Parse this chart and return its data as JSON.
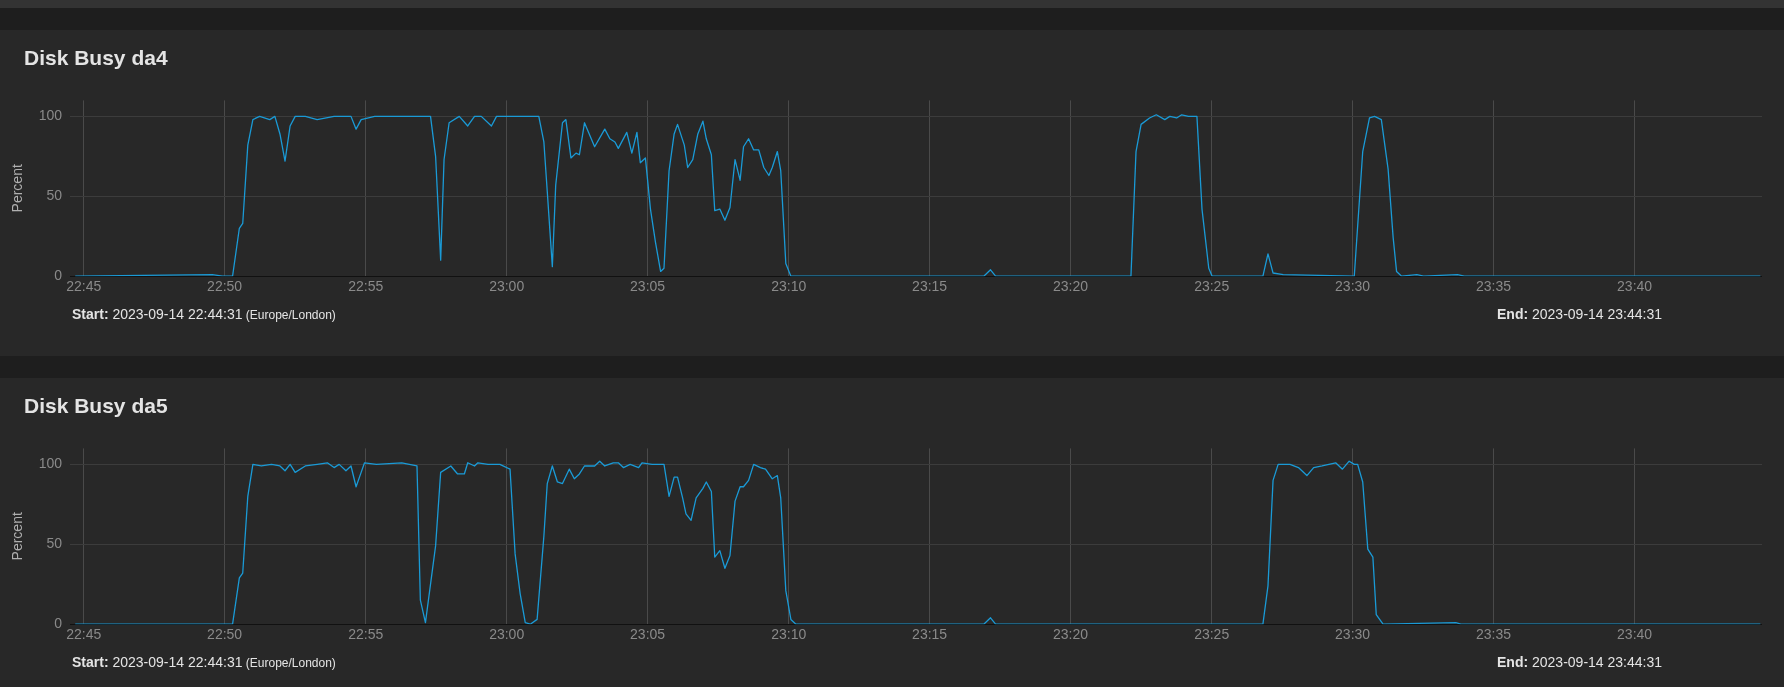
{
  "chart_data": [
    {
      "type": "line",
      "title": "Disk Busy da4",
      "ylabel": "Percent",
      "color": "#1a9ad6",
      "grid": true,
      "legend": false,
      "xlim": [
        22.742,
        23.742
      ],
      "ylim": [
        0,
        110
      ],
      "yticks": [
        0,
        50,
        100
      ],
      "xticks": [
        {
          "value": 22.75,
          "label": "22:45"
        },
        {
          "value": 22.8333,
          "label": "22:50"
        },
        {
          "value": 22.9167,
          "label": "22:55"
        },
        {
          "value": 23,
          "label": "23:00"
        },
        {
          "value": 23.0833,
          "label": "23:05"
        },
        {
          "value": 23.1667,
          "label": "23:10"
        },
        {
          "value": 23.25,
          "label": "23:15"
        },
        {
          "value": 23.3333,
          "label": "23:20"
        },
        {
          "value": 23.4167,
          "label": "23:25"
        },
        {
          "value": 23.5,
          "label": "23:30"
        },
        {
          "value": 23.5833,
          "label": "23:35"
        },
        {
          "value": 23.6667,
          "label": "23:40"
        }
      ],
      "annotations": [
        "Start: 2023-09-14 22:44:31 (Europe/London)",
        "End: 2023-09-14 23:44:31"
      ],
      "x": [
        22.745,
        22.826,
        22.832,
        22.838,
        22.842,
        22.844,
        22.847,
        22.85,
        22.854,
        22.86,
        22.863,
        22.866,
        22.869,
        22.872,
        22.875,
        22.881,
        22.888,
        22.898,
        22.908,
        22.911,
        22.914,
        22.922,
        22.955,
        22.958,
        22.961,
        22.963,
        22.966,
        22.972,
        22.977,
        22.981,
        22.985,
        22.991,
        22.994,
        23.003,
        23.015,
        23.019,
        23.022,
        23.024,
        23.027,
        23.029,
        23.033,
        23.035,
        23.038,
        23.041,
        23.043,
        23.046,
        23.052,
        23.058,
        23.061,
        23.064,
        23.066,
        23.071,
        23.074,
        23.077,
        23.079,
        23.082,
        23.085,
        23.088,
        23.091,
        23.093,
        23.096,
        23.099,
        23.101,
        23.105,
        23.107,
        23.11,
        23.113,
        23.116,
        23.118,
        23.121,
        23.123,
        23.126,
        23.129,
        23.132,
        23.135,
        23.138,
        23.14,
        23.143,
        23.146,
        23.149,
        23.152,
        23.155,
        23.157,
        23.16,
        23.162,
        23.165,
        23.168,
        23.282,
        23.286,
        23.289,
        23.369,
        23.372,
        23.375,
        23.38,
        23.384,
        23.389,
        23.392,
        23.396,
        23.399,
        23.403,
        23.408,
        23.411,
        23.415,
        23.417,
        23.447,
        23.45,
        23.453,
        23.459,
        23.501,
        23.506,
        23.51,
        23.513,
        23.517,
        23.521,
        23.524,
        23.526,
        23.529,
        23.538,
        23.542,
        23.562,
        23.566,
        23.741
      ],
      "values": [
        0,
        1,
        0,
        0,
        30,
        33,
        82,
        98,
        100,
        98,
        100,
        89,
        72,
        94,
        100,
        100,
        98,
        100,
        100,
        92,
        98,
        100,
        100,
        75,
        10,
        73,
        96,
        100,
        94,
        100,
        100,
        94,
        100,
        100,
        100,
        100,
        84,
        53,
        6,
        57,
        96,
        98,
        74,
        77,
        76,
        96,
        81,
        92,
        86,
        84,
        80,
        90,
        77,
        90,
        71,
        74,
        42,
        21,
        3,
        5,
        66,
        89,
        95,
        82,
        68,
        73,
        89,
        97,
        86,
        76,
        41,
        42,
        35,
        43,
        73,
        60,
        81,
        86,
        79,
        79,
        68,
        63,
        68,
        78,
        66,
        8,
        0,
        0,
        4,
        0,
        0,
        78,
        95,
        99,
        101,
        98,
        100,
        99,
        101,
        100,
        100,
        42,
        5,
        0,
        0,
        14,
        2,
        1,
        0,
        78,
        99,
        100,
        98,
        67,
        24,
        3,
        0,
        1,
        0,
        1,
        0,
        0
      ]
    },
    {
      "type": "line",
      "title": "Disk Busy da5",
      "ylabel": "Percent",
      "color": "#1a9ad6",
      "grid": true,
      "legend": false,
      "xlim": [
        22.742,
        23.742
      ],
      "ylim": [
        0,
        110
      ],
      "yticks": [
        0,
        50,
        100
      ],
      "xticks": [
        {
          "value": 22.75,
          "label": "22:45"
        },
        {
          "value": 22.8333,
          "label": "22:50"
        },
        {
          "value": 22.9167,
          "label": "22:55"
        },
        {
          "value": 23,
          "label": "23:00"
        },
        {
          "value": 23.0833,
          "label": "23:05"
        },
        {
          "value": 23.1667,
          "label": "23:10"
        },
        {
          "value": 23.25,
          "label": "23:15"
        },
        {
          "value": 23.3333,
          "label": "23:20"
        },
        {
          "value": 23.4167,
          "label": "23:25"
        },
        {
          "value": 23.5,
          "label": "23:30"
        },
        {
          "value": 23.5833,
          "label": "23:35"
        },
        {
          "value": 23.6667,
          "label": "23:40"
        }
      ],
      "annotations": [
        "Start: 2023-09-14 22:44:31 (Europe/London)",
        "End: 2023-09-14 23:44:31"
      ],
      "x": [
        22.745,
        22.832,
        22.838,
        22.842,
        22.844,
        22.847,
        22.85,
        22.855,
        22.861,
        22.866,
        22.869,
        22.872,
        22.875,
        22.881,
        22.888,
        22.894,
        22.898,
        22.901,
        22.905,
        22.908,
        22.911,
        22.914,
        22.916,
        22.923,
        22.938,
        22.947,
        22.949,
        22.952,
        22.958,
        22.961,
        22.967,
        22.971,
        22.975,
        22.977,
        22.981,
        22.983,
        22.989,
        22.996,
        23.002,
        23.005,
        23.008,
        23.011,
        23.014,
        23.018,
        23.022,
        23.024,
        23.027,
        23.03,
        23.033,
        23.037,
        23.04,
        23.043,
        23.046,
        23.052,
        23.055,
        23.058,
        23.063,
        23.066,
        23.069,
        23.073,
        23.078,
        23.08,
        23.086,
        23.093,
        23.096,
        23.099,
        23.101,
        23.104,
        23.106,
        23.109,
        23.112,
        23.116,
        23.118,
        23.121,
        23.123,
        23.126,
        23.129,
        23.132,
        23.135,
        23.138,
        23.14,
        23.143,
        23.146,
        23.15,
        23.153,
        23.157,
        23.16,
        23.162,
        23.165,
        23.168,
        23.171,
        23.282,
        23.286,
        23.289,
        23.447,
        23.45,
        23.453,
        23.456,
        23.463,
        23.468,
        23.473,
        23.477,
        23.482,
        23.49,
        23.494,
        23.498,
        23.501,
        23.503,
        23.506,
        23.509,
        23.512,
        23.514,
        23.518,
        23.561,
        23.564,
        23.741
      ],
      "values": [
        0,
        0,
        0,
        29,
        32,
        80,
        100,
        99,
        100,
        99,
        96,
        100,
        95,
        99,
        100,
        101,
        98,
        100,
        96,
        99,
        86,
        95,
        101,
        100,
        101,
        99,
        15,
        1,
        49,
        95,
        99,
        94,
        94,
        101,
        99,
        101,
        100,
        100,
        97,
        44,
        19,
        1,
        0,
        3,
        55,
        88,
        99,
        89,
        88,
        97,
        91,
        94,
        99,
        99,
        102,
        99,
        101,
        101,
        98,
        100,
        98,
        101,
        100,
        100,
        80,
        92,
        92,
        79,
        69,
        65,
        79,
        85,
        89,
        83,
        42,
        46,
        35,
        43,
        77,
        86,
        86,
        90,
        100,
        98,
        97,
        91,
        93,
        79,
        21,
        3,
        0,
        0,
        4,
        0,
        0,
        24,
        90,
        100,
        100,
        98,
        93,
        98,
        99,
        101,
        97,
        102,
        100,
        100,
        89,
        47,
        42,
        6,
        0,
        1,
        0,
        0
      ]
    }
  ]
}
